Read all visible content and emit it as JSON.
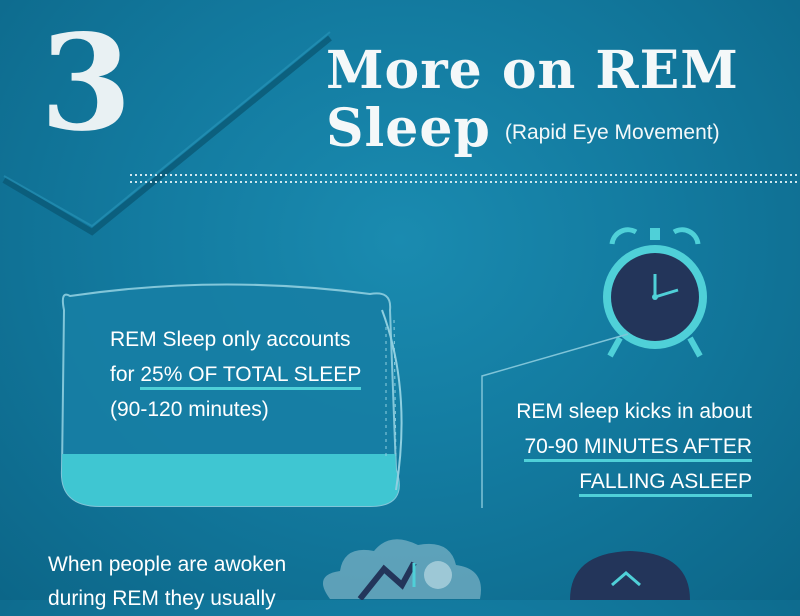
{
  "section_number": "3",
  "title": {
    "line1": "More on REM",
    "line2": "Sleep",
    "subtitle": "(Rapid Eye Movement)"
  },
  "pillow_fact": {
    "line1": "REM Sleep only accounts",
    "line2_prefix": "for ",
    "line2_highlight": "25% OF TOTAL SLEEP",
    "line3": "(90-120 minutes)"
  },
  "kicks_fact": {
    "line1": "REM sleep kicks in about",
    "line2": "70-90 MINUTES AFTER",
    "line3": "FALLING ASLEEP"
  },
  "awoken_fact": {
    "line1": "When people are awoken",
    "line2": "during REM they usually"
  },
  "colors": {
    "background": "#137ba0",
    "accent_cyan": "#4fd0d8",
    "clock_face": "#23355a",
    "text": "#ffffff"
  },
  "icons": [
    "checkmark-icon",
    "pillow-icon",
    "alarm-clock-icon",
    "cloud-icon",
    "sleep-mask-icon"
  ]
}
